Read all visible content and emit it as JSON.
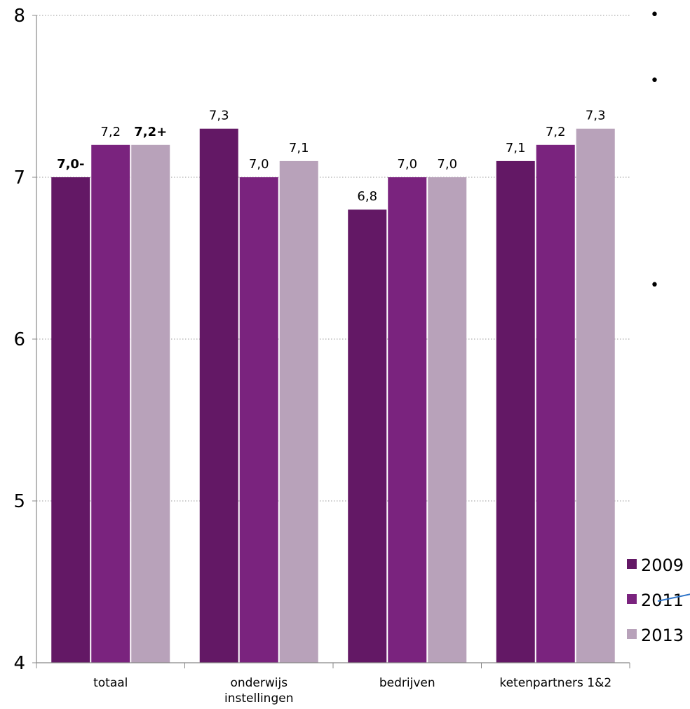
{
  "chart_data": {
    "type": "bar",
    "title": "",
    "xlabel": "",
    "ylabel": "",
    "ylim": [
      4,
      8
    ],
    "yticks": [
      "4",
      "5",
      "6",
      "7",
      "8"
    ],
    "categories": [
      [
        "totaal"
      ],
      [
        "onderwijs",
        "instellingen"
      ],
      [
        "bedrijven"
      ],
      [
        "ketenpartners 1&2"
      ]
    ],
    "series": [
      {
        "name": "2009",
        "color": "#631865",
        "values": [
          7.0,
          7.3,
          6.8,
          7.1
        ],
        "labels": [
          "7,0-",
          "7,3",
          "6,8",
          "7,1"
        ],
        "bold": [
          true,
          false,
          false,
          false
        ]
      },
      {
        "name": "2011",
        "color": "#7A237E",
        "values": [
          7.2,
          7.0,
          7.0,
          7.2
        ],
        "labels": [
          "7,2",
          "7,0",
          "7,0",
          "7,2"
        ],
        "bold": [
          false,
          false,
          false,
          false
        ]
      },
      {
        "name": "2013",
        "color": "#B8A2BA",
        "values": [
          7.2,
          7.1,
          7.0,
          7.3
        ],
        "labels": [
          "7,2+",
          "7,1",
          "7,0",
          "7,3"
        ],
        "bold": [
          true,
          false,
          false,
          false
        ]
      }
    ],
    "grid": "horizontal dotted",
    "legend_position": "bottom-right"
  },
  "decor": {
    "bullets": [
      "•",
      "•",
      "•"
    ]
  }
}
